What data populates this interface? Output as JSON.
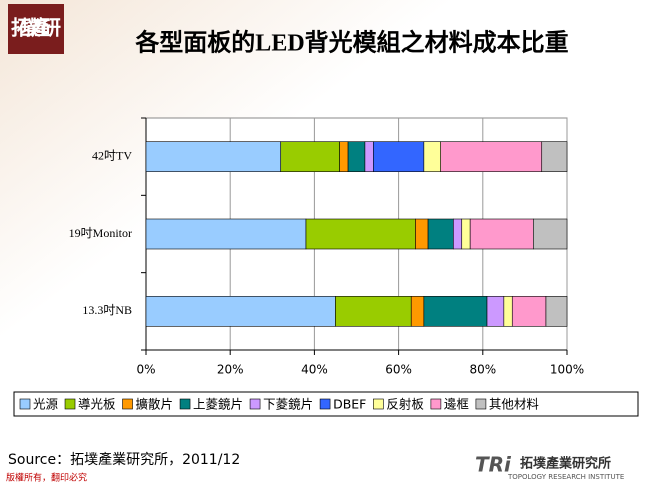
{
  "logo": "拓墣產研",
  "source": "Source：拓墣產業研究所，2011/12",
  "copyright": "版權所有，翻印必究",
  "brand": {
    "name": "拓墣產業研究所",
    "english": "TOPOLOGY RESEARCH INSTITUTE"
  },
  "chart_data": {
    "type": "stacked-barh",
    "title": "各型面板的LED背光模組之材料成本比重",
    "categories": [
      "42吋TV",
      "19吋Monitor",
      "13.3吋NB"
    ],
    "series": [
      {
        "name": "光源",
        "color": "#99ccff",
        "values": [
          32,
          38,
          45
        ]
      },
      {
        "name": "導光板",
        "color": "#99cc00",
        "values": [
          14,
          26,
          18
        ]
      },
      {
        "name": "擴散片",
        "color": "#ff9900",
        "values": [
          2,
          3,
          3
        ]
      },
      {
        "name": "上菱鏡片",
        "color": "#008080",
        "values": [
          4,
          6,
          15
        ]
      },
      {
        "name": "下菱鏡片",
        "color": "#cc99ff",
        "values": [
          2,
          2,
          4
        ]
      },
      {
        "name": "DBEF",
        "color": "#3366ff",
        "values": [
          12,
          0,
          0
        ]
      },
      {
        "name": "反射板",
        "color": "#ffff99",
        "values": [
          4,
          2,
          2
        ]
      },
      {
        "name": "邊框",
        "color": "#ff99cc",
        "values": [
          24,
          15,
          8
        ]
      },
      {
        "name": "其他材料",
        "color": "#c0c0c0",
        "values": [
          6,
          8,
          5
        ]
      }
    ],
    "xlim": [
      0,
      100
    ],
    "xticks": [
      {
        "value": 0,
        "label": "0%"
      },
      {
        "value": 20,
        "label": "20%"
      },
      {
        "value": 40,
        "label": "40%"
      },
      {
        "value": 60,
        "label": "60%"
      },
      {
        "value": 80,
        "label": "80%"
      },
      {
        "value": 100,
        "label": "100%"
      }
    ],
    "grid": true,
    "legend": "bottom"
  }
}
